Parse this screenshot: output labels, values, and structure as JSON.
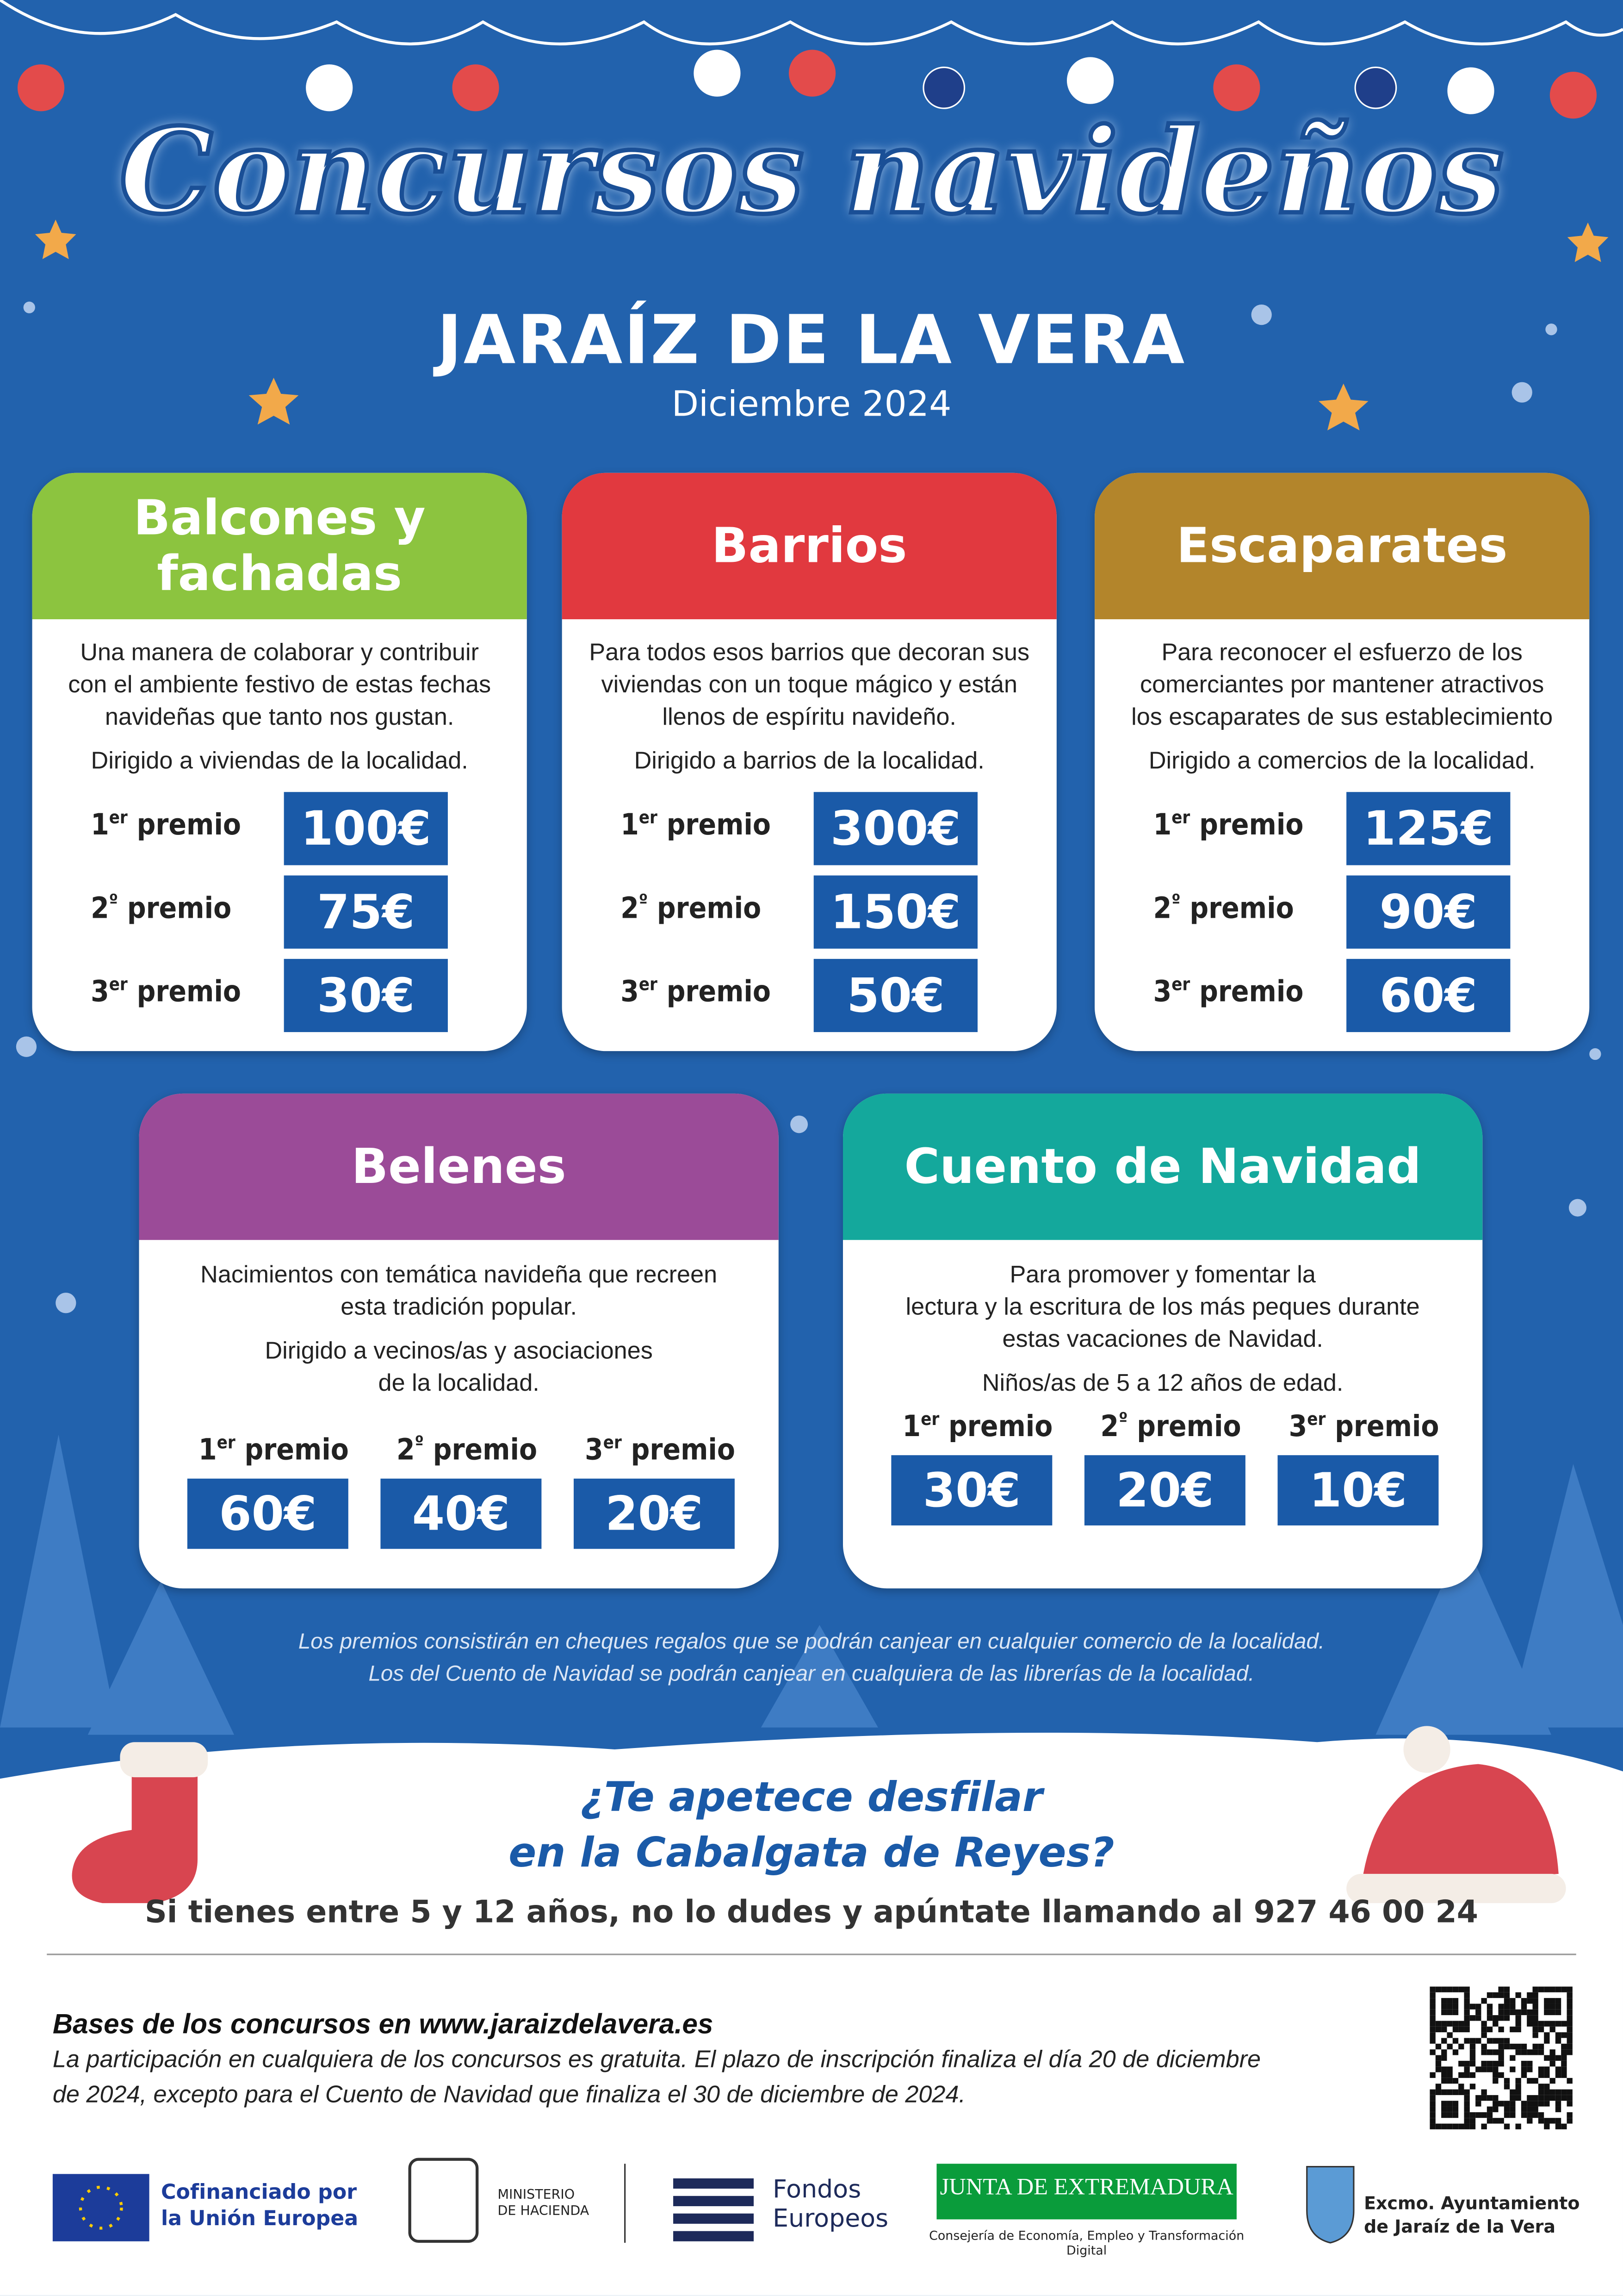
{
  "header": {
    "title": "Concursos navideños",
    "subtitle": "JARAÍZ DE LA VERA",
    "date": "Diciembre 2024"
  },
  "contests": [
    {
      "title": [
        "Balcones y",
        "fachadas"
      ],
      "color": "#8cc43f",
      "description": [
        "Una manera de colaborar y contribuir",
        "con el ambiente festivo de estas fechas",
        "navideñas que tanto nos gustan."
      ],
      "target": [
        "Dirigido a viviendas de la localidad."
      ],
      "prizes": [
        {
          "number": "1",
          "suffix": "er",
          "word": "premio",
          "amount": "100€"
        },
        {
          "number": "2",
          "suffix": "º",
          "word": "premio",
          "amount": "75€"
        },
        {
          "number": "3",
          "suffix": "er",
          "word": "premio",
          "amount": "30€"
        }
      ]
    },
    {
      "title": [
        "Barrios"
      ],
      "color": "#e1393f",
      "description": [
        "Para todos esos barrios que decoran sus",
        "viviendas con un toque mágico y están",
        "llenos de espíritu navideño."
      ],
      "target": [
        "Dirigido a barrios de la localidad."
      ],
      "prizes": [
        {
          "number": "1",
          "suffix": "er",
          "word": "premio",
          "amount": "300€"
        },
        {
          "number": "2",
          "suffix": "º",
          "word": "premio",
          "amount": "150€"
        },
        {
          "number": "3",
          "suffix": "er",
          "word": "premio",
          "amount": "50€"
        }
      ]
    },
    {
      "title": [
        "Escaparates"
      ],
      "color": "#b3852b",
      "description": [
        "Para reconocer el esfuerzo de los",
        "comerciantes por mantener atractivos",
        "los escaparates de sus establecimiento"
      ],
      "target": [
        "Dirigido a comercios de la localidad."
      ],
      "prizes": [
        {
          "number": "1",
          "suffix": "er",
          "word": "premio",
          "amount": "125€"
        },
        {
          "number": "2",
          "suffix": "º",
          "word": "premio",
          "amount": "90€"
        },
        {
          "number": "3",
          "suffix": "er",
          "word": "premio",
          "amount": "60€"
        }
      ]
    },
    {
      "title": [
        "Belenes"
      ],
      "color": "#9b4b98",
      "description": [
        "Nacimientos con temática navideña que recreen",
        "esta tradición popular."
      ],
      "target": [
        "Dirigido a vecinos/as y asociaciones",
        "de la localidad."
      ],
      "prizes": [
        {
          "number": "1",
          "suffix": "er",
          "word": "premio",
          "amount": "60€"
        },
        {
          "number": "2",
          "suffix": "º",
          "word": "premio",
          "amount": "40€"
        },
        {
          "number": "3",
          "suffix": "er",
          "word": "premio",
          "amount": "20€"
        }
      ]
    },
    {
      "title": [
        "Cuento de Navidad"
      ],
      "color": "#14a89c",
      "description": [
        "Para promover y fomentar la",
        "lectura y la escritura de los más peques durante",
        "estas vacaciones de Navidad."
      ],
      "target": [
        "Niños/as de 5 a 12 años de edad."
      ],
      "prizes": [
        {
          "number": "1",
          "suffix": "er",
          "word": "premio",
          "amount": "30€"
        },
        {
          "number": "2",
          "suffix": "º",
          "word": "premio",
          "amount": "20€"
        },
        {
          "number": "3",
          "suffix": "er",
          "word": "premio",
          "amount": "10€"
        }
      ]
    }
  ],
  "notes": [
    "Los premios consistirán en cheques regalos que se podrán canjear en cualquier comercio de la localidad.",
    "Los del Cuento de Navidad se podrán canjear en cualquiera de las librerías de la localidad."
  ],
  "cabalgata": {
    "question": [
      "¿Te apetece desfilar",
      "en la Cabalgata de Reyes?"
    ],
    "call": "Si tienes entre 5 y 12 años, no lo dudes y apúntate llamando al 927 46 00 24"
  },
  "footer": {
    "bases": "Bases de los concursos en www.jaraizdelavera.es",
    "text": [
      "La participación en cualquiera de los concursos es gratuita. El plazo de inscripción finaliza el día 20 de diciembre",
      "de 2024, excepto para el Cuento de Navidad que finaliza el 30 de diciembre de 2024."
    ]
  },
  "logos": {
    "eu": [
      "Cofinanciado por",
      "la Unión Europea"
    ],
    "ministry": [
      "MINISTERIO",
      "DE HACIENDA"
    ],
    "funds": [
      "Fondos",
      "Europeos"
    ],
    "junta": "JUNTA DE EXTREMADURA",
    "junta_sub": "Consejería de Economía, Empleo y Transformación Digital",
    "council": [
      "Excmo. Ayuntamiento",
      "de Jaraíz de la Vera"
    ]
  }
}
